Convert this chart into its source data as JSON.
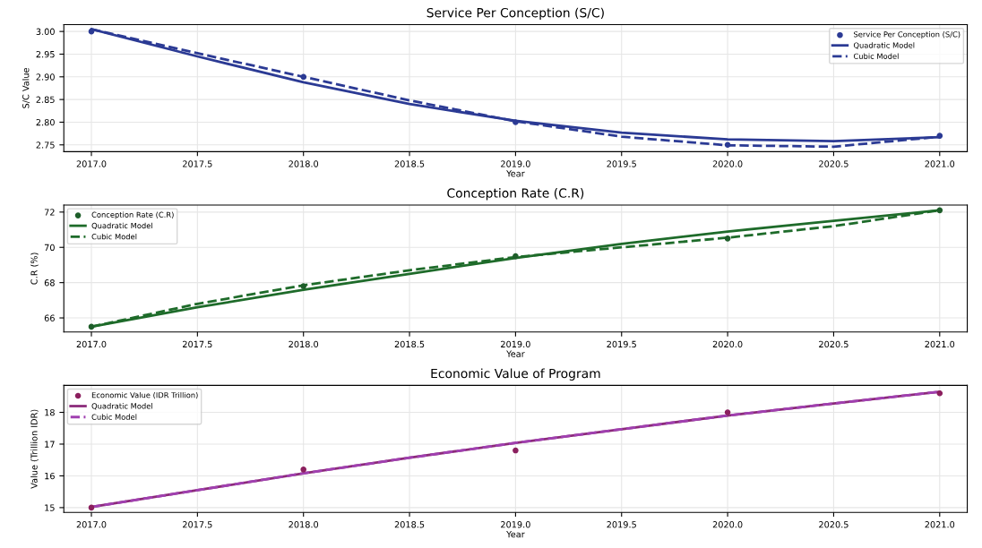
{
  "chart_data": [
    {
      "type": "scatter",
      "title": "Service Per Conception (S/C)",
      "xlabel": "Year",
      "ylabel": "S/C Value",
      "xlim": [
        2016.87,
        2021.13
      ],
      "xticks": [
        {
          "value": 2017,
          "label": "2017.0"
        },
        2017.5,
        {
          "value": 2018,
          "label": "2018.0"
        },
        2018.5,
        {
          "value": 2019,
          "label": "2019.0"
        },
        2019.5,
        {
          "value": 2020,
          "label": "2020.0"
        },
        2020.5,
        {
          "value": 2021,
          "label": "2021.0"
        }
      ],
      "ylim": [
        2.735,
        3.015
      ],
      "yticks": [
        {
          "value": 2.75,
          "label": "2.75"
        },
        {
          "value": 2.8,
          "label": "2.80"
        },
        {
          "value": 2.85,
          "label": "2.85"
        },
        {
          "value": 2.9,
          "label": "2.90"
        },
        {
          "value": 2.95,
          "label": "2.95"
        },
        {
          "value": 3.0,
          "label": "3.00"
        }
      ],
      "grid": true,
      "legend": "top right",
      "series": [
        {
          "name": "Service Per Conception (S/C)",
          "marker": "circle",
          "color": "#2b3a94",
          "x": [
            2017,
            2018,
            2019,
            2020,
            2021
          ],
          "values": [
            3.0,
            2.9,
            2.8,
            2.75,
            2.77
          ]
        },
        {
          "name": "Quadratic Model",
          "type": "line",
          "line_style": "solid",
          "color": "#2b3a94",
          "x": [
            2017,
            2017.5,
            2018,
            2018.5,
            2019,
            2019.5,
            2020,
            2020.5,
            2021
          ],
          "values": [
            3.005,
            2.945,
            2.888,
            2.84,
            2.803,
            2.777,
            2.762,
            2.758,
            2.767
          ]
        },
        {
          "name": "Cubic Model",
          "type": "line",
          "line_style": "dashed",
          "color": "#2b3a94",
          "x": [
            2017,
            2017.5,
            2018,
            2018.5,
            2019,
            2019.5,
            2020,
            2020.5,
            2021
          ],
          "values": [
            3.005,
            2.952,
            2.9,
            2.848,
            2.802,
            2.768,
            2.749,
            2.746,
            2.768
          ]
        }
      ]
    },
    {
      "type": "scatter",
      "title": "Conception Rate (C.R)",
      "xlabel": "Year",
      "ylabel": "C.R (%)",
      "xlim": [
        2016.87,
        2021.13
      ],
      "xticks": [
        {
          "value": 2017,
          "label": "2017.0"
        },
        2017.5,
        {
          "value": 2018,
          "label": "2018.0"
        },
        2018.5,
        {
          "value": 2019,
          "label": "2019.0"
        },
        2019.5,
        {
          "value": 2020,
          "label": "2020.0"
        },
        2020.5,
        {
          "value": 2021,
          "label": "2021.0"
        }
      ],
      "ylim": [
        65.2,
        72.4
      ],
      "yticks": [
        66,
        68,
        70,
        72
      ],
      "grid": true,
      "legend": "top left",
      "series": [
        {
          "name": "Conception Rate (C.R)",
          "marker": "circle",
          "color": "#1e5e2a",
          "x": [
            2017,
            2018,
            2019,
            2020,
            2021
          ],
          "values": [
            65.5,
            67.8,
            69.5,
            70.5,
            72.1
          ]
        },
        {
          "name": "Quadratic Model",
          "type": "line",
          "line_style": "solid",
          "color": "#1e6b2a",
          "x": [
            2017,
            2017.5,
            2018,
            2018.5,
            2019,
            2019.5,
            2020,
            2020.5,
            2021
          ],
          "values": [
            65.5,
            66.6,
            67.6,
            68.5,
            69.4,
            70.2,
            70.9,
            71.5,
            72.1
          ]
        },
        {
          "name": "Cubic Model",
          "type": "line",
          "line_style": "dashed",
          "color": "#1e6b2a",
          "x": [
            2017,
            2017.5,
            2018,
            2018.5,
            2019,
            2019.5,
            2020,
            2020.5,
            2021
          ],
          "values": [
            65.5,
            66.8,
            67.85,
            68.7,
            69.45,
            70.0,
            70.55,
            71.2,
            72.1
          ]
        }
      ]
    },
    {
      "type": "scatter",
      "title": "Economic Value of Program",
      "xlabel": "Year",
      "ylabel": "Value (Trillion IDR)",
      "xlim": [
        2016.87,
        2021.13
      ],
      "xticks": [
        {
          "value": 2017,
          "label": "2017.0"
        },
        2017.5,
        {
          "value": 2018,
          "label": "2018.0"
        },
        2018.5,
        {
          "value": 2019,
          "label": "2019.0"
        },
        2019.5,
        {
          "value": 2020,
          "label": "2020.0"
        },
        2020.5,
        {
          "value": 2021,
          "label": "2021.0"
        }
      ],
      "ylim": [
        14.85,
        18.85
      ],
      "yticks": [
        15,
        16,
        17,
        18
      ],
      "grid": true,
      "legend": "top left",
      "series": [
        {
          "name": "Economic Value (IDR Trillion)",
          "marker": "circle",
          "color": "#8b1f5e",
          "x": [
            2017,
            2018,
            2019,
            2020,
            2021
          ],
          "values": [
            15.0,
            16.2,
            16.8,
            18.0,
            18.6
          ]
        },
        {
          "name": "Quadratic Model",
          "type": "line",
          "line_style": "solid",
          "color": "#8b2a7a",
          "x": [
            2017,
            2017.5,
            2018,
            2018.5,
            2019,
            2019.5,
            2020,
            2020.5,
            2021
          ],
          "values": [
            15.02,
            15.55,
            16.08,
            16.57,
            17.04,
            17.47,
            17.9,
            18.28,
            18.65
          ]
        },
        {
          "name": "Cubic Model",
          "type": "line",
          "line_style": "dashed",
          "color": "#a040b0",
          "x": [
            2017,
            2017.5,
            2018,
            2018.5,
            2019,
            2019.5,
            2020,
            2020.5,
            2021
          ],
          "values": [
            15.02,
            15.55,
            16.08,
            16.57,
            17.04,
            17.47,
            17.9,
            18.28,
            18.65
          ]
        }
      ]
    }
  ]
}
